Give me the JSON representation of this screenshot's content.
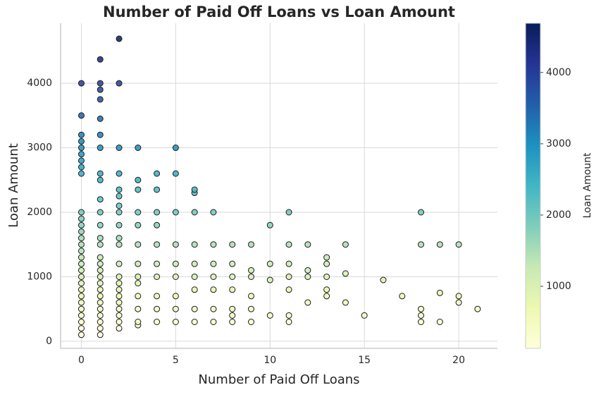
{
  "chart_data": {
    "type": "scatter",
    "title": "Number of Paid Off Loans vs Loan Amount",
    "xlabel": "Number of Paid Off Loans",
    "ylabel": "Loan Amount",
    "colorbar_label": "Loan Amount",
    "colormap": [
      "#ffffd9",
      "#edf8b1",
      "#c7e9b4",
      "#7fcdbb",
      "#41b6c4",
      "#1d91c0",
      "#225ea8",
      "#253494",
      "#081d58"
    ],
    "clim": [
      130,
      4690
    ],
    "cticks": [
      1000,
      2000,
      3000,
      4000
    ],
    "xlim": [
      -1.1,
      22.05
    ],
    "xticks": [
      0,
      5,
      10,
      15,
      20
    ],
    "ylim": [
      -110,
      4930
    ],
    "yticks": [
      0,
      1000,
      2000,
      3000,
      4000
    ],
    "grid": true,
    "x": [
      0,
      0,
      0,
      0,
      0,
      0,
      0,
      0,
      0,
      0,
      0,
      0,
      0,
      0,
      0,
      0,
      0,
      0,
      0,
      0,
      0,
      0,
      0,
      0,
      0,
      0,
      0,
      0,
      0,
      1,
      1,
      1,
      1,
      1,
      1,
      1,
      1,
      1,
      1,
      1,
      1,
      1,
      1,
      1,
      1,
      1,
      1,
      1,
      1,
      1,
      1,
      1,
      1,
      1,
      1,
      1,
      2,
      2,
      2,
      2,
      2,
      2,
      2,
      2,
      2,
      2,
      2,
      2,
      2,
      2,
      2,
      2,
      2,
      2,
      2,
      2,
      2,
      3,
      3,
      3,
      3,
      3,
      3,
      3,
      3,
      3,
      3,
      3,
      3,
      3,
      4,
      4,
      4,
      4,
      4,
      4,
      4,
      4,
      4,
      4,
      5,
      5,
      5,
      5,
      5,
      5,
      5,
      5,
      5,
      6,
      6,
      6,
      6,
      6,
      6,
      6,
      6,
      6,
      7,
      7,
      7,
      7,
      7,
      7,
      7,
      8,
      8,
      8,
      8,
      8,
      8,
      8,
      9,
      9,
      9,
      9,
      9,
      9,
      10,
      10,
      10,
      10,
      11,
      11,
      11,
      11,
      11,
      11,
      11,
      12,
      12,
      12,
      12,
      13,
      13,
      13,
      13,
      13,
      14,
      14,
      14,
      15,
      16,
      17,
      18,
      18,
      18,
      18,
      18,
      19,
      19,
      19,
      20,
      20,
      20,
      21
    ],
    "values": [
      100,
      200,
      300,
      400,
      500,
      600,
      700,
      800,
      900,
      1000,
      1100,
      1200,
      1300,
      1400,
      1500,
      1600,
      1700,
      1800,
      1900,
      2000,
      2600,
      2700,
      2800,
      2900,
      3000,
      3100,
      3200,
      3500,
      4000,
      100,
      200,
      300,
      400,
      500,
      600,
      700,
      800,
      900,
      1000,
      1100,
      1200,
      1300,
      1500,
      1600,
      1800,
      2000,
      2200,
      2500,
      2600,
      3000,
      3200,
      3450,
      3750,
      3900,
      4000,
      4370,
      200,
      300,
      400,
      500,
      600,
      700,
      800,
      900,
      1000,
      1200,
      1500,
      1600,
      1800,
      2000,
      2100,
      2250,
      2350,
      2600,
      3000,
      4000,
      4690,
      250,
      300,
      500,
      700,
      900,
      1000,
      1200,
      1500,
      1800,
      2000,
      2350,
      2500,
      3000,
      300,
      500,
      700,
      1000,
      1200,
      1500,
      1800,
      2000,
      2350,
      2600,
      300,
      500,
      700,
      1000,
      1200,
      1500,
      2000,
      2600,
      3000,
      300,
      500,
      800,
      1000,
      1200,
      1500,
      2000,
      2300,
      2350,
      300,
      500,
      800,
      1000,
      1200,
      1500,
      2000,
      300,
      400,
      500,
      800,
      1000,
      1200,
      1500,
      300,
      500,
      700,
      1000,
      1100,
      1500,
      400,
      950,
      1200,
      1800,
      300,
      400,
      800,
      1000,
      1200,
      1500,
      2000,
      600,
      1000,
      1100,
      1500,
      700,
      800,
      1000,
      1200,
      1300,
      600,
      1050,
      1500,
      400,
      950,
      700,
      300,
      400,
      500,
      1500,
      2000,
      300,
      750,
      1500,
      600,
      700,
      1500,
      500
    ]
  }
}
